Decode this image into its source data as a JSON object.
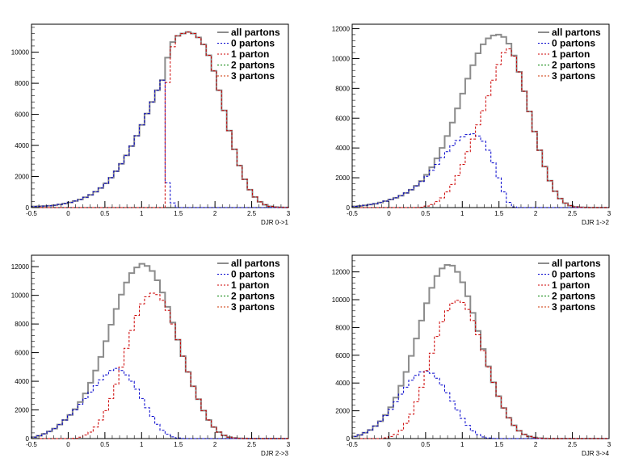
{
  "legend_labels": [
    "all partons",
    "0 partons",
    "1 parton",
    "2 partons",
    "3 partons"
  ],
  "colors": {
    "all": "#8c8c8c",
    "p0": "#0000cc",
    "p1": "#cc0000",
    "p2": "#008000",
    "p3": "#cc3300"
  },
  "chart_data": [
    {
      "type": "histogram",
      "xlabel": "DJR 0->1",
      "xlim": [
        -0.5,
        3
      ],
      "ylim": [
        0,
        11800
      ],
      "x_ticks": [
        "-0.5",
        "0",
        "0.5",
        "1",
        "1.5",
        "2",
        "2.5",
        "3"
      ],
      "y_ticks": [
        0,
        2000,
        4000,
        6000,
        8000,
        10000
      ],
      "bin_width": 0.07,
      "series": [
        {
          "name": "all partons",
          "values": [
            70,
            85,
            100,
            120,
            150,
            200,
            260,
            330,
            420,
            520,
            660,
            820,
            1020,
            1260,
            1560,
            1920,
            2340,
            2820,
            3360,
            3960,
            4620,
            5320,
            6050,
            6800,
            7550,
            8200,
            9650,
            10650,
            11050,
            11200,
            11300,
            11200,
            10950,
            10500,
            9800,
            8800,
            7550,
            6250,
            4950,
            3750,
            2700,
            1820,
            1150,
            680,
            370,
            180,
            80,
            30,
            10,
            5
          ]
        },
        {
          "name": "0 partons",
          "values": [
            70,
            85,
            100,
            120,
            150,
            200,
            260,
            330,
            420,
            520,
            660,
            820,
            1020,
            1260,
            1560,
            1920,
            2340,
            2820,
            3360,
            3960,
            4620,
            5320,
            6050,
            6800,
            7550,
            8200,
            1600,
            300,
            0,
            0,
            0,
            0,
            0,
            0,
            0,
            0,
            0,
            0,
            0,
            0,
            0,
            0,
            0,
            0,
            0,
            0,
            0,
            0,
            0,
            0
          ]
        },
        {
          "name": "1 parton",
          "values": [
            0,
            0,
            0,
            0,
            0,
            0,
            0,
            0,
            0,
            0,
            0,
            0,
            0,
            0,
            0,
            0,
            0,
            0,
            0,
            0,
            0,
            0,
            0,
            0,
            0,
            0,
            8050,
            10350,
            11050,
            11200,
            11300,
            11200,
            10950,
            10500,
            9800,
            8800,
            7550,
            6250,
            4950,
            3750,
            2700,
            1820,
            1150,
            680,
            370,
            180,
            80,
            30,
            10,
            5
          ]
        }
      ]
    },
    {
      "type": "histogram",
      "xlabel": "DJR 1->2",
      "xlim": [
        -0.5,
        3
      ],
      "ylim": [
        0,
        12300
      ],
      "x_ticks": [
        "-0.5",
        "0",
        "0.5",
        "1",
        "1.5",
        "2",
        "2.5",
        "3"
      ],
      "y_ticks": [
        0,
        2000,
        4000,
        6000,
        8000,
        10000,
        12000
      ],
      "bin_width": 0.07,
      "series": [
        {
          "name": "all partons",
          "values": [
            80,
            110,
            150,
            200,
            260,
            340,
            430,
            540,
            660,
            800,
            980,
            1200,
            1460,
            1780,
            2200,
            2700,
            3300,
            4000,
            4800,
            5700,
            6650,
            7650,
            8650,
            9550,
            10350,
            10950,
            11350,
            11550,
            11600,
            11450,
            11000,
            10200,
            9100,
            7800,
            6450,
            5100,
            3850,
            2750,
            1800,
            1100,
            600,
            300,
            130,
            50,
            20,
            10,
            0,
            0,
            0,
            0
          ]
        },
        {
          "name": "0 partons",
          "values": [
            80,
            110,
            150,
            200,
            260,
            340,
            430,
            540,
            660,
            800,
            980,
            1200,
            1450,
            1750,
            2100,
            2500,
            2900,
            3350,
            3750,
            4150,
            4500,
            4750,
            4900,
            4950,
            4800,
            4450,
            3850,
            3000,
            2000,
            1050,
            350,
            50,
            0,
            0,
            0,
            0,
            0,
            0,
            0,
            0,
            0,
            0,
            0,
            0,
            0,
            0,
            0,
            0,
            0,
            0
          ]
        },
        {
          "name": "1 parton",
          "values": [
            0,
            0,
            0,
            0,
            0,
            0,
            0,
            0,
            0,
            0,
            0,
            0,
            10,
            30,
            100,
            200,
            400,
            650,
            1050,
            1550,
            2150,
            2900,
            3750,
            4600,
            5550,
            6500,
            7500,
            8550,
            9600,
            10400,
            10650,
            10150,
            9100,
            7800,
            6450,
            5100,
            3850,
            2750,
            1800,
            1100,
            600,
            300,
            130,
            50,
            20,
            10,
            0,
            0,
            0,
            0
          ]
        }
      ]
    },
    {
      "type": "histogram",
      "xlabel": "DJR 2->3",
      "xlim": [
        -0.5,
        3
      ],
      "ylim": [
        0,
        12800
      ],
      "x_ticks": [
        "-0.5",
        "0",
        "0.5",
        "1",
        "1.5",
        "2",
        "2.5",
        "3"
      ],
      "y_ticks": [
        0,
        2000,
        4000,
        6000,
        8000,
        10000,
        12000
      ],
      "bin_width": 0.07,
      "series": [
        {
          "name": "all partons",
          "values": [
            100,
            200,
            330,
            500,
            700,
            980,
            1300,
            1650,
            2050,
            2550,
            3150,
            3900,
            4750,
            5700,
            6800,
            7950,
            9050,
            10050,
            10900,
            11550,
            11950,
            12200,
            12050,
            11700,
            11050,
            10200,
            9200,
            8100,
            6900,
            5750,
            4650,
            3650,
            2750,
            1950,
            1300,
            800,
            450,
            220,
            100,
            40,
            15,
            5,
            0,
            0,
            0,
            0,
            0,
            0,
            0,
            0
          ]
        },
        {
          "name": "0 partons",
          "values": [
            100,
            200,
            330,
            500,
            700,
            980,
            1300,
            1650,
            2000,
            2400,
            2800,
            3250,
            3700,
            4100,
            4450,
            4750,
            4900,
            4750,
            4450,
            4000,
            3450,
            2800,
            2150,
            1550,
            1000,
            580,
            300,
            120,
            40,
            10,
            0,
            0,
            0,
            0,
            0,
            0,
            0,
            0,
            0,
            0,
            0,
            0,
            0,
            0,
            0,
            0,
            0,
            0,
            0,
            0
          ]
        },
        {
          "name": "1 parton",
          "values": [
            0,
            0,
            0,
            0,
            0,
            0,
            0,
            0,
            20,
            100,
            250,
            450,
            800,
            1300,
            1950,
            2800,
            3800,
            5000,
            6300,
            7550,
            8600,
            9400,
            9900,
            10150,
            10050,
            9650,
            8950,
            8000,
            6900,
            5750,
            4650,
            3650,
            2750,
            1950,
            1300,
            800,
            450,
            220,
            100,
            40,
            15,
            5,
            0,
            0,
            0,
            0,
            0,
            0,
            0,
            0
          ]
        }
      ]
    },
    {
      "type": "histogram",
      "xlabel": "DJR 3->4",
      "xlim": [
        -0.5,
        3
      ],
      "ylim": [
        0,
        13200
      ],
      "x_ticks": [
        "-0.5",
        "0",
        "0.5",
        "1",
        "1.5",
        "2",
        "2.5",
        "3"
      ],
      "y_ticks": [
        0,
        2000,
        4000,
        6000,
        8000,
        10000,
        12000
      ],
      "bin_width": 0.07,
      "series": [
        {
          "name": "all partons",
          "values": [
            150,
            260,
            420,
            620,
            900,
            1250,
            1700,
            2250,
            2950,
            3800,
            4800,
            5950,
            7200,
            8500,
            9750,
            10850,
            11700,
            12250,
            12500,
            12450,
            12000,
            11250,
            10250,
            9050,
            7750,
            6450,
            5200,
            4050,
            3050,
            2200,
            1500,
            950,
            560,
            300,
            150,
            70,
            30,
            10,
            0,
            0,
            0,
            0,
            0,
            0,
            0,
            0,
            0,
            0,
            0,
            0
          ]
        },
        {
          "name": "0 partons",
          "values": [
            150,
            260,
            420,
            620,
            900,
            1250,
            1650,
            2100,
            2650,
            3200,
            3700,
            4200,
            4550,
            4800,
            4850,
            4700,
            4350,
            3850,
            3300,
            2700,
            2050,
            1450,
            950,
            550,
            280,
            120,
            40,
            10,
            0,
            0,
            0,
            0,
            0,
            0,
            0,
            0,
            0,
            0,
            0,
            0,
            0,
            0,
            0,
            0,
            0,
            0,
            0,
            0,
            0,
            0
          ]
        },
        {
          "name": "1 parton",
          "values": [
            0,
            0,
            0,
            0,
            0,
            0,
            50,
            150,
            300,
            600,
            1100,
            1750,
            2650,
            3700,
            4900,
            6150,
            7350,
            8400,
            9200,
            9750,
            9950,
            9800,
            9300,
            8500,
            7470,
            6330,
            5160,
            4040,
            3050,
            2200,
            1500,
            950,
            560,
            300,
            150,
            70,
            30,
            10,
            0,
            0,
            0,
            0,
            0,
            0,
            0,
            0,
            0,
            0,
            0,
            0
          ]
        }
      ]
    }
  ]
}
